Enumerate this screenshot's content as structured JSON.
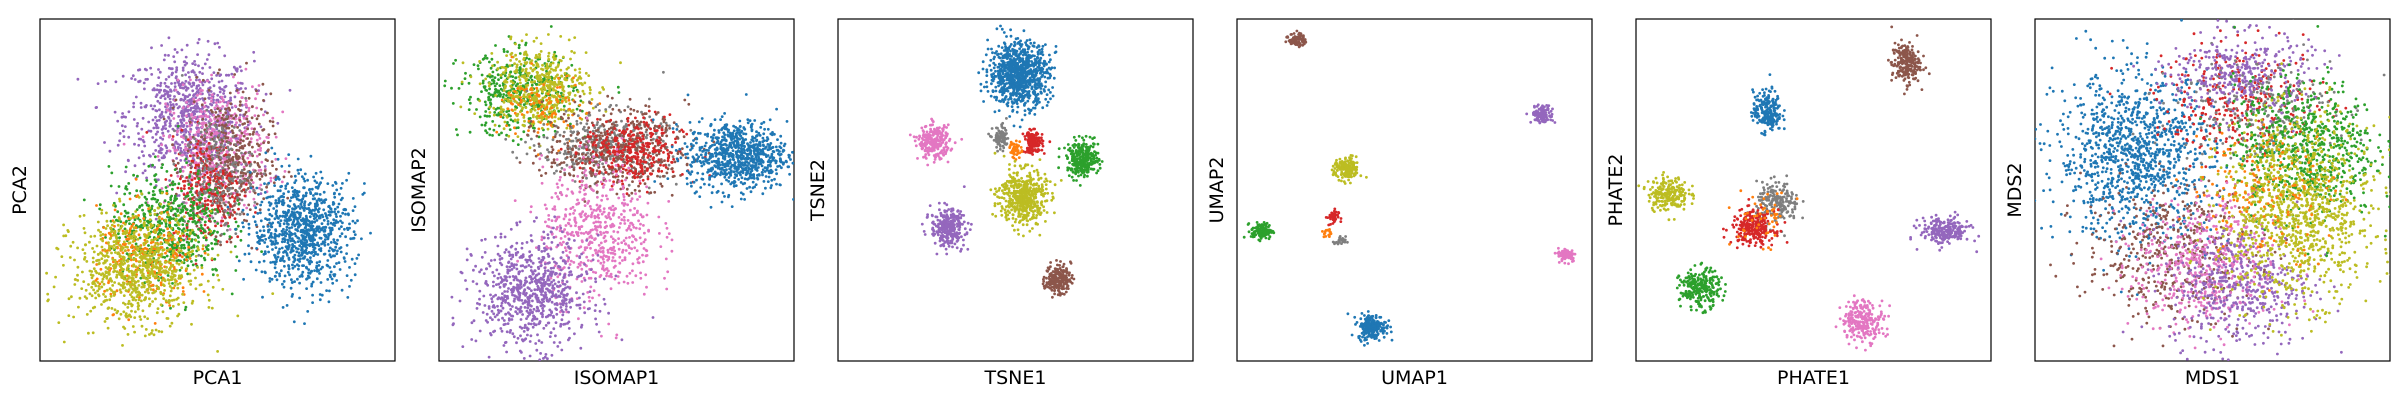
{
  "palette": {
    "blue": "#1f77b4",
    "orange": "#ff7f0e",
    "green": "#2ca02c",
    "red": "#d62728",
    "purple": "#9467bd",
    "brown": "#8c564b",
    "pink": "#e377c2",
    "gray": "#7f7f7f",
    "olive": "#bcbd22"
  },
  "chart_data": [
    {
      "type": "scatter",
      "xlabel": "PCA1",
      "ylabel": "PCA2",
      "xlim": [
        0,
        100
      ],
      "ylim": [
        0,
        100
      ],
      "grid": false,
      "ticks": false,
      "clusters": [
        {
          "color": "purple",
          "cx": 42,
          "cy": 72,
          "sx": 9,
          "sy": 9,
          "n": 750
        },
        {
          "color": "pink",
          "cx": 50,
          "cy": 62,
          "sx": 7,
          "sy": 9,
          "n": 500
        },
        {
          "color": "brown",
          "cx": 53,
          "cy": 58,
          "sx": 6,
          "sy": 10,
          "n": 450
        },
        {
          "color": "red",
          "cx": 47,
          "cy": 50,
          "sx": 5,
          "sy": 8,
          "n": 250
        },
        {
          "color": "gray",
          "cx": 50,
          "cy": 55,
          "sx": 5,
          "sy": 8,
          "n": 200
        },
        {
          "color": "green",
          "cx": 36,
          "cy": 40,
          "sx": 8,
          "sy": 8,
          "n": 550
        },
        {
          "color": "orange",
          "cx": 30,
          "cy": 30,
          "sx": 7,
          "sy": 7,
          "n": 250
        },
        {
          "color": "olive",
          "cx": 27,
          "cy": 27,
          "sx": 9,
          "sy": 8,
          "n": 800
        },
        {
          "color": "blue",
          "cx": 74,
          "cy": 38,
          "sx": 7,
          "sy": 8,
          "n": 900
        }
      ]
    },
    {
      "type": "scatter",
      "xlabel": "ISOMAP1",
      "ylabel": "ISOMAP2",
      "xlim": [
        0,
        100
      ],
      "ylim": [
        0,
        100
      ],
      "grid": false,
      "ticks": false,
      "clusters": [
        {
          "color": "green",
          "cx": 22,
          "cy": 78,
          "sx": 8,
          "sy": 6,
          "n": 400
        },
        {
          "color": "olive",
          "cx": 28,
          "cy": 80,
          "sx": 7,
          "sy": 6,
          "n": 500
        },
        {
          "color": "orange",
          "cx": 30,
          "cy": 74,
          "sx": 6,
          "sy": 5,
          "n": 100
        },
        {
          "color": "gray",
          "cx": 46,
          "cy": 63,
          "sx": 9,
          "sy": 5,
          "n": 350
        },
        {
          "color": "brown",
          "cx": 50,
          "cy": 62,
          "sx": 10,
          "sy": 6,
          "n": 450
        },
        {
          "color": "red",
          "cx": 55,
          "cy": 61,
          "sx": 7,
          "sy": 5,
          "n": 300
        },
        {
          "color": "blue",
          "cx": 84,
          "cy": 60,
          "sx": 7,
          "sy": 5,
          "n": 800
        },
        {
          "color": "pink",
          "cx": 45,
          "cy": 38,
          "sx": 8,
          "sy": 10,
          "n": 550
        },
        {
          "color": "purple",
          "cx": 26,
          "cy": 20,
          "sx": 8,
          "sy": 8,
          "n": 750
        }
      ]
    },
    {
      "type": "scatter",
      "xlabel": "TSNE1",
      "ylabel": "TSNE2",
      "xlim": [
        0,
        100
      ],
      "ylim": [
        0,
        100
      ],
      "grid": false,
      "ticks": false,
      "clusters": [
        {
          "color": "blue",
          "cx": 51,
          "cy": 84,
          "sx": 4.2,
          "sy": 4.6,
          "n": 900
        },
        {
          "color": "pink",
          "cx": 27,
          "cy": 64,
          "sx": 2.2,
          "sy": 2.4,
          "n": 250
        },
        {
          "color": "gray",
          "cx": 46,
          "cy": 65,
          "sx": 1.2,
          "sy": 1.8,
          "n": 90
        },
        {
          "color": "red",
          "cx": 55,
          "cy": 64,
          "sx": 1.3,
          "sy": 1.6,
          "n": 150
        },
        {
          "color": "orange",
          "cx": 50,
          "cy": 62,
          "sx": 0.8,
          "sy": 1.4,
          "n": 40
        },
        {
          "color": "green",
          "cx": 69,
          "cy": 59,
          "sx": 2.2,
          "sy": 2.6,
          "n": 300
        },
        {
          "color": "olive",
          "cx": 52,
          "cy": 48,
          "sx": 3.3,
          "sy": 4.0,
          "n": 500
        },
        {
          "color": "purple",
          "cx": 31,
          "cy": 39,
          "sx": 2.4,
          "sy": 2.8,
          "n": 300
        },
        {
          "color": "brown",
          "cx": 62,
          "cy": 24,
          "sx": 1.8,
          "sy": 2.1,
          "n": 200
        }
      ]
    },
    {
      "type": "scatter",
      "xlabel": "UMAP1",
      "ylabel": "UMAP2",
      "xlim": [
        0,
        100
      ],
      "ylim": [
        0,
        100
      ],
      "grid": false,
      "ticks": false,
      "clusters": [
        {
          "color": "brown",
          "cx": 17,
          "cy": 94,
          "sx": 1.2,
          "sy": 1.0,
          "n": 80
        },
        {
          "color": "purple",
          "cx": 86,
          "cy": 72,
          "sx": 1.5,
          "sy": 1.3,
          "n": 120
        },
        {
          "color": "olive",
          "cx": 31,
          "cy": 56,
          "sx": 1.8,
          "sy": 1.7,
          "n": 170
        },
        {
          "color": "red",
          "cx": 27,
          "cy": 42,
          "sx": 0.8,
          "sy": 1.2,
          "n": 40
        },
        {
          "color": "orange",
          "cx": 25,
          "cy": 37,
          "sx": 0.8,
          "sy": 0.7,
          "n": 15
        },
        {
          "color": "gray",
          "cx": 29,
          "cy": 35,
          "sx": 0.8,
          "sy": 0.7,
          "n": 25
        },
        {
          "color": "green",
          "cx": 7,
          "cy": 38,
          "sx": 1.5,
          "sy": 1.2,
          "n": 120
        },
        {
          "color": "pink",
          "cx": 93,
          "cy": 31,
          "sx": 1.3,
          "sy": 1.0,
          "n": 90
        },
        {
          "color": "blue",
          "cx": 38,
          "cy": 10,
          "sx": 2.0,
          "sy": 1.8,
          "n": 220
        }
      ]
    },
    {
      "type": "scatter",
      "xlabel": "PHATE1",
      "ylabel": "PHATE2",
      "xlim": [
        0,
        100
      ],
      "ylim": [
        0,
        100
      ],
      "grid": false,
      "ticks": false,
      "clusters": [
        {
          "color": "brown",
          "cx": 76,
          "cy": 87,
          "sx": 2.0,
          "sy": 3.0,
          "n": 220
        },
        {
          "color": "blue",
          "cx": 37,
          "cy": 73,
          "sx": 2.0,
          "sy": 3.0,
          "n": 220
        },
        {
          "color": "olive",
          "cx": 9,
          "cy": 49,
          "sx": 2.8,
          "sy": 2.5,
          "n": 220
        },
        {
          "color": "gray",
          "cx": 40,
          "cy": 46,
          "sx": 3.0,
          "sy": 3.0,
          "n": 200
        },
        {
          "color": "red",
          "cx": 33,
          "cy": 39,
          "sx": 3.0,
          "sy": 2.5,
          "n": 250
        },
        {
          "color": "orange",
          "cx": 36,
          "cy": 42,
          "sx": 4.0,
          "sy": 4.0,
          "n": 50
        },
        {
          "color": "purple",
          "cx": 87,
          "cy": 38,
          "sx": 3.5,
          "sy": 2.0,
          "n": 230
        },
        {
          "color": "green",
          "cx": 18,
          "cy": 21,
          "sx": 2.8,
          "sy": 2.8,
          "n": 250
        },
        {
          "color": "pink",
          "cx": 64,
          "cy": 12,
          "sx": 3.0,
          "sy": 3.0,
          "n": 250
        }
      ]
    },
    {
      "type": "scatter",
      "xlabel": "MDS1",
      "ylabel": "MDS2",
      "xlim": [
        0,
        100
      ],
      "ylim": [
        0,
        100
      ],
      "grid": false,
      "ticks": false,
      "clusters": [
        {
          "color": "blue",
          "cx": 28,
          "cy": 60,
          "sx": 11,
          "sy": 12,
          "n": 1100
        },
        {
          "color": "red",
          "cx": 58,
          "cy": 76,
          "sx": 12,
          "sy": 8,
          "n": 300
        },
        {
          "color": "gray",
          "cx": 62,
          "cy": 74,
          "sx": 11,
          "sy": 8,
          "n": 250
        },
        {
          "color": "purple",
          "cx": 58,
          "cy": 84,
          "sx": 10,
          "sy": 6,
          "n": 350
        },
        {
          "color": "brown",
          "cx": 38,
          "cy": 32,
          "sx": 12,
          "sy": 10,
          "n": 450
        },
        {
          "color": "pink",
          "cx": 48,
          "cy": 28,
          "sx": 10,
          "sy": 10,
          "n": 500
        },
        {
          "color": "purple",
          "cx": 58,
          "cy": 22,
          "sx": 10,
          "sy": 9,
          "n": 450
        },
        {
          "color": "green",
          "cx": 76,
          "cy": 62,
          "sx": 10,
          "sy": 10,
          "n": 700
        },
        {
          "color": "olive",
          "cx": 74,
          "cy": 44,
          "sx": 11,
          "sy": 13,
          "n": 1100
        },
        {
          "color": "orange",
          "cx": 64,
          "cy": 50,
          "sx": 10,
          "sy": 10,
          "n": 150
        }
      ]
    }
  ]
}
